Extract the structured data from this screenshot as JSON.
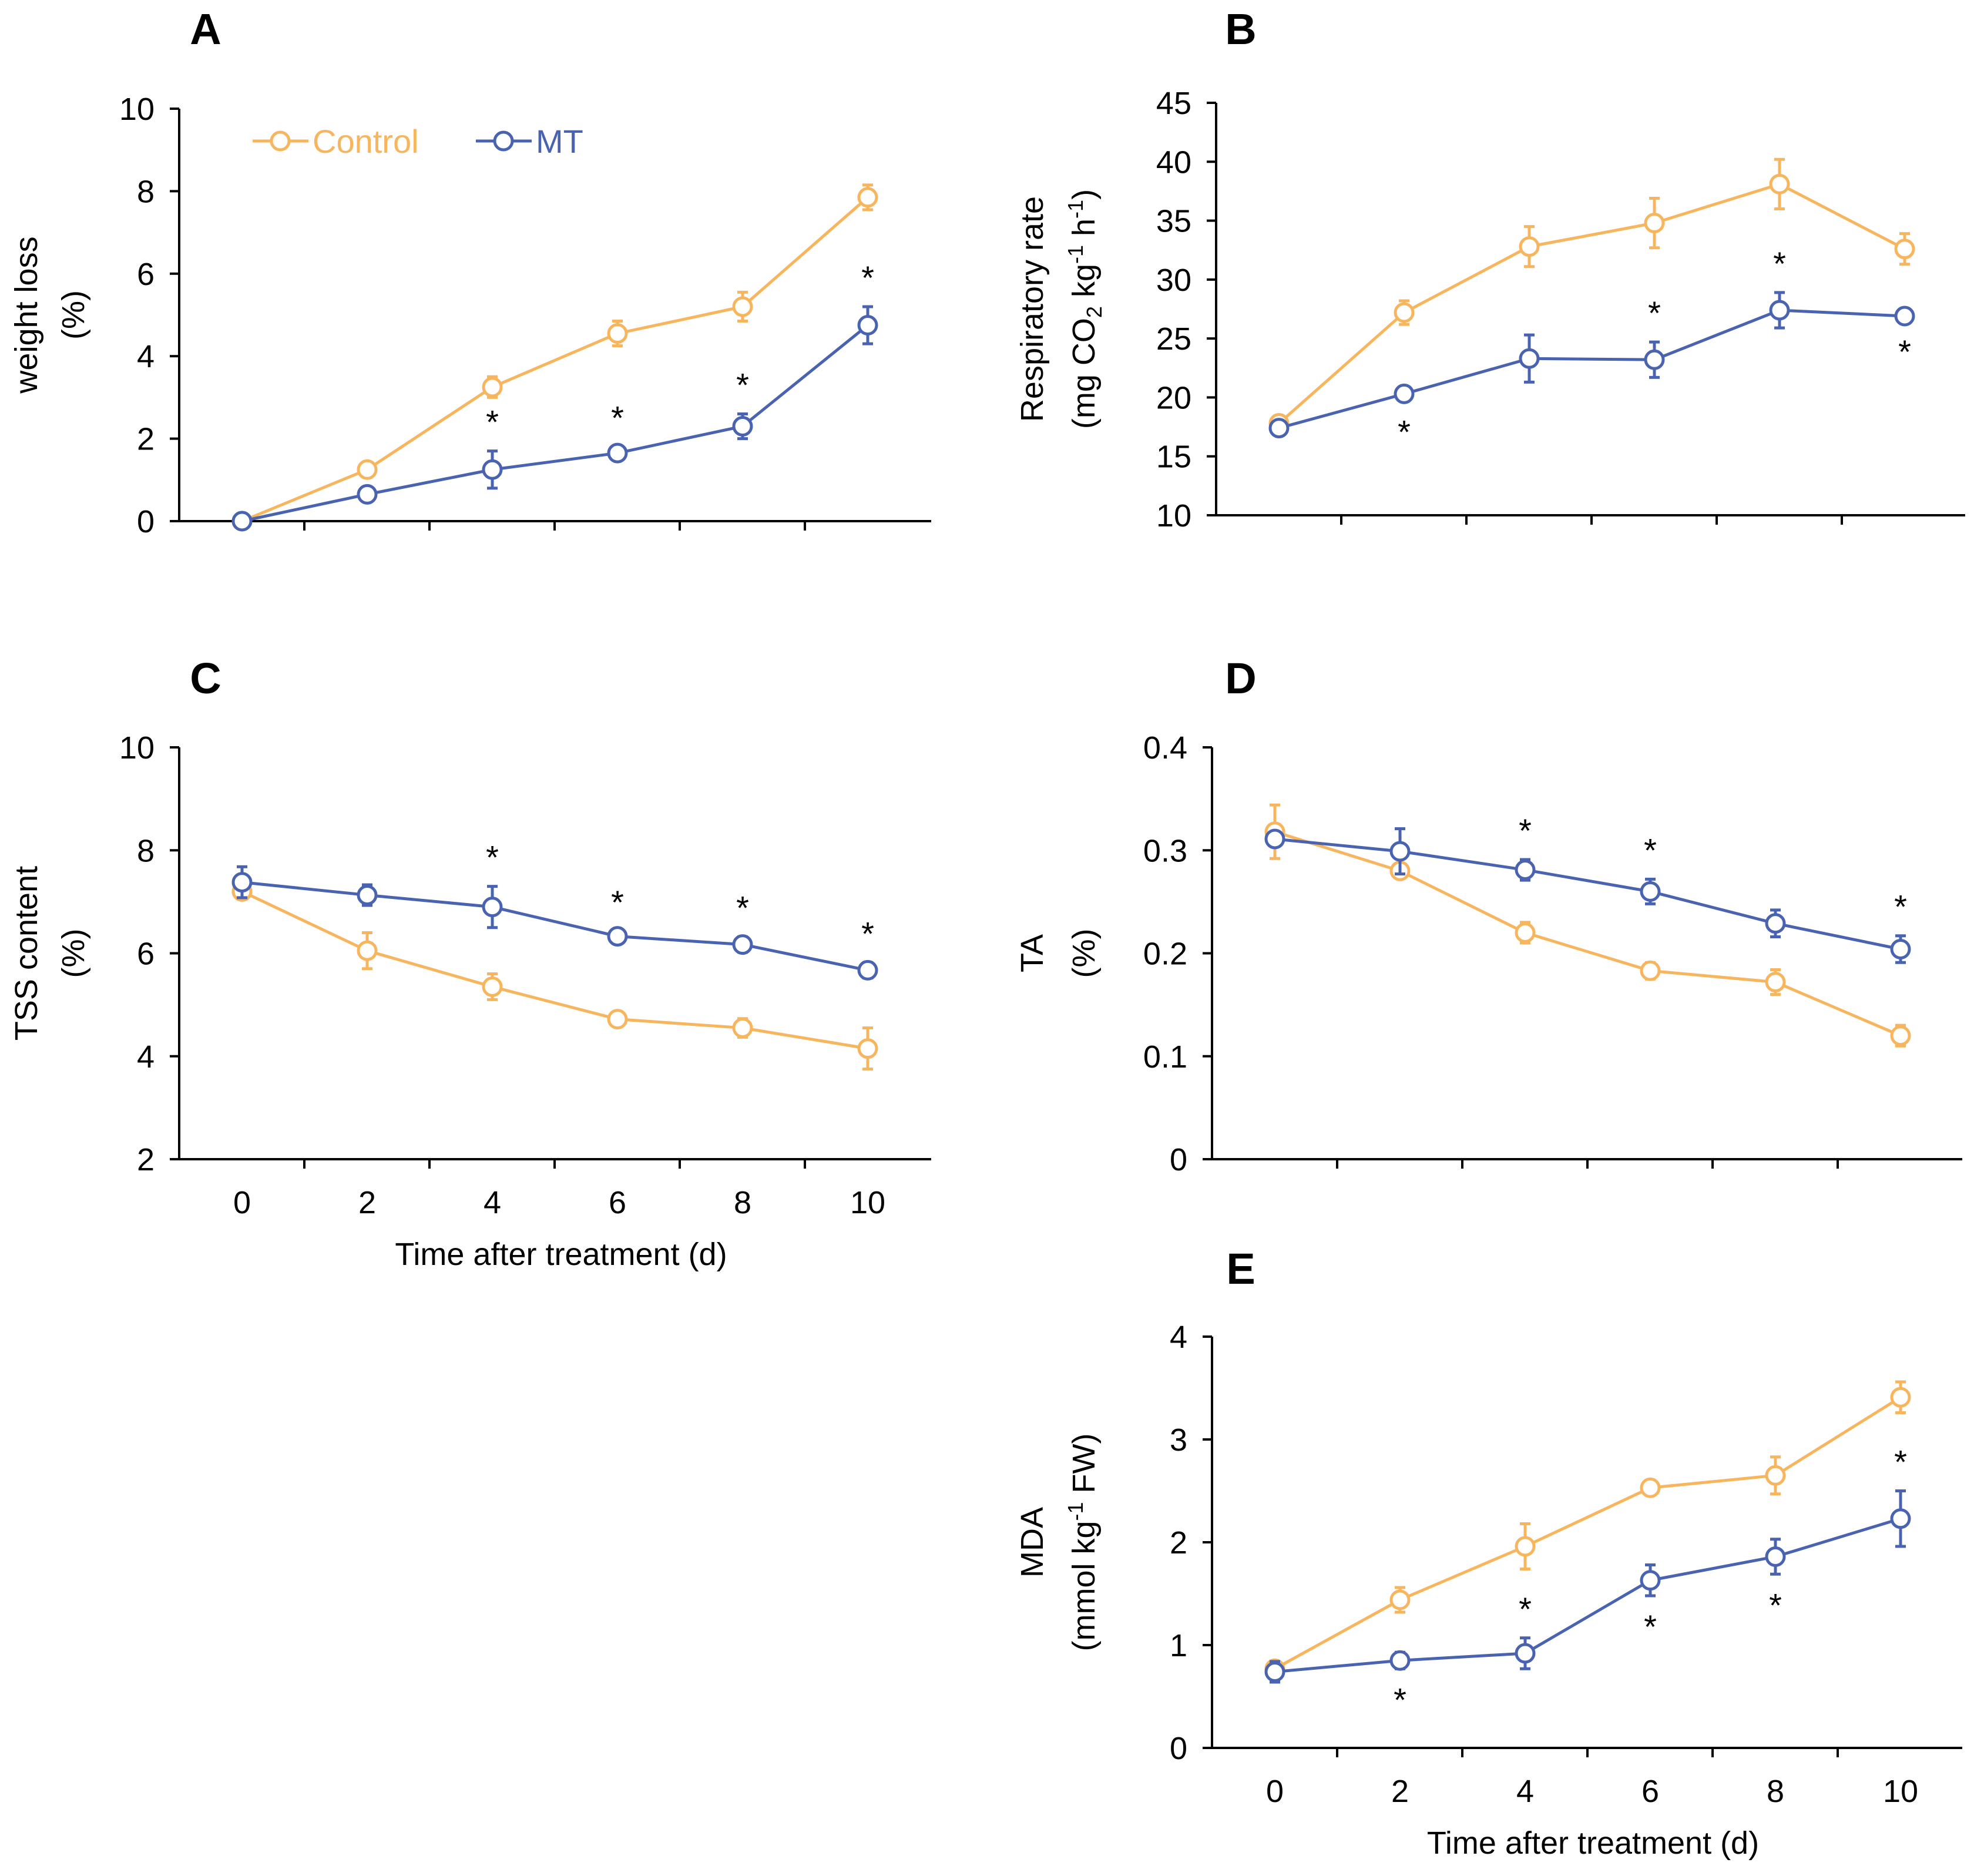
{
  "colors": {
    "control": "#F7B55E",
    "mt": "#4A63B0",
    "axis": "#000000"
  },
  "legend": {
    "placement": "top-left of panel A",
    "control": "Control",
    "mt": "MT"
  },
  "xlabel": "Time after treatment (d)",
  "chart_data": [
    {
      "panel": "A",
      "type": "line",
      "x": [
        0,
        2,
        4,
        6,
        8,
        10
      ],
      "xticks": [
        "",
        "",
        "",
        "",
        "",
        ""
      ],
      "ylim": [
        0,
        10
      ],
      "yticks": [
        "0",
        "2",
        "4",
        "6",
        "8",
        "10"
      ],
      "ylabel_lines": [
        "weight loss",
        "(%)"
      ],
      "xlabel": "",
      "series": [
        {
          "name": "Control",
          "values": [
            0,
            1.25,
            3.25,
            4.55,
            5.2,
            7.85
          ],
          "errors": [
            0.05,
            0.12,
            0.25,
            0.3,
            0.35,
            0.3
          ]
        },
        {
          "name": "MT",
          "values": [
            0,
            0.65,
            1.25,
            1.65,
            2.3,
            4.75
          ],
          "errors": [
            0.05,
            0.1,
            0.45,
            0.15,
            0.3,
            0.45
          ]
        }
      ],
      "significance": [
        "",
        "",
        "*",
        "*",
        "*",
        "*"
      ]
    },
    {
      "panel": "B",
      "type": "line",
      "x": [
        0,
        2,
        4,
        6,
        8,
        10
      ],
      "xticks": [
        "",
        "",
        "",
        "",
        "",
        ""
      ],
      "ylim": [
        10,
        45
      ],
      "yticks": [
        "10",
        "15",
        "20",
        "25",
        "30",
        "35",
        "40",
        "45"
      ],
      "ylabel_lines": [
        "Respiratory rate"
      ],
      "ylabel_unit": {
        "prefix": "(mg CO",
        "sub": "2",
        "mid": " kg",
        "sup1": "-1",
        "mid2": " h",
        "sup2": "-1",
        "suffix": ")"
      },
      "xlabel": "",
      "series": [
        {
          "name": "Control",
          "values": [
            17.8,
            27.2,
            32.8,
            34.8,
            38.1,
            32.6
          ],
          "errors": [
            0.6,
            1.0,
            1.7,
            2.1,
            2.1,
            1.3
          ]
        },
        {
          "name": "MT",
          "values": [
            17.4,
            20.3,
            23.3,
            23.2,
            27.4,
            26.9
          ],
          "errors": [
            0.5,
            0.6,
            2.0,
            1.5,
            1.5,
            0.4
          ]
        }
      ],
      "significance": [
        "",
        "*",
        "",
        "*",
        "*",
        "*"
      ]
    },
    {
      "panel": "C",
      "type": "line",
      "x": [
        0,
        2,
        4,
        6,
        8,
        10
      ],
      "xticks": [
        "0",
        "2",
        "4",
        "6",
        "8",
        "10"
      ],
      "ylim": [
        2,
        10
      ],
      "yticks": [
        "2",
        "4",
        "6",
        "8",
        "10"
      ],
      "ylabel_lines": [
        "TSS content",
        "(%)"
      ],
      "xlabel": "Time after treatment (d)",
      "series": [
        {
          "name": "Control",
          "values": [
            7.2,
            6.05,
            5.35,
            4.72,
            4.55,
            4.15
          ],
          "errors": [
            0.15,
            0.35,
            0.25,
            0.12,
            0.18,
            0.4
          ]
        },
        {
          "name": "MT",
          "values": [
            7.38,
            7.13,
            6.9,
            6.33,
            6.17,
            5.67
          ],
          "errors": [
            0.3,
            0.2,
            0.4,
            0.1,
            0.15,
            0.15
          ]
        }
      ],
      "significance": [
        "",
        "",
        "*",
        "*",
        "*",
        "*"
      ]
    },
    {
      "panel": "D",
      "type": "line",
      "x": [
        0,
        2,
        4,
        6,
        8,
        10
      ],
      "xticks": [
        "",
        "",
        "",
        "",
        "",
        ""
      ],
      "ylim": [
        0,
        0.4
      ],
      "yticks": [
        "0",
        "0.1",
        "0.2",
        "0.3",
        "0.4"
      ],
      "ylabel_lines": [
        "TA",
        "(%)"
      ],
      "xlabel": "",
      "series": [
        {
          "name": "Control",
          "values": [
            0.318,
            0.28,
            0.22,
            0.183,
            0.172,
            0.12
          ],
          "errors": [
            0.026,
            0.005,
            0.01,
            0.008,
            0.012,
            0.01
          ]
        },
        {
          "name": "MT",
          "values": [
            0.311,
            0.299,
            0.281,
            0.26,
            0.229,
            0.204
          ],
          "errors": [
            0.005,
            0.022,
            0.01,
            0.012,
            0.013,
            0.013
          ]
        }
      ],
      "significance": [
        "",
        "",
        "*",
        "*",
        "",
        "*"
      ]
    },
    {
      "panel": "E",
      "type": "line",
      "x": [
        0,
        2,
        4,
        6,
        8,
        10
      ],
      "xticks": [
        "0",
        "2",
        "4",
        "6",
        "8",
        "10"
      ],
      "ylim": [
        0,
        4
      ],
      "yticks": [
        "0",
        "1",
        "2",
        "3",
        "4"
      ],
      "ylabel_lines": [
        "MDA"
      ],
      "ylabel_unit": {
        "prefix": "(mmol kg",
        "sup1": "-1",
        "suffix": " FW)"
      },
      "xlabel": "Time after treatment (d)",
      "series": [
        {
          "name": "Control",
          "values": [
            0.77,
            1.44,
            1.96,
            2.53,
            2.65,
            3.41
          ],
          "errors": [
            0.07,
            0.12,
            0.22,
            0.07,
            0.18,
            0.15
          ]
        },
        {
          "name": "MT",
          "values": [
            0.74,
            0.85,
            0.92,
            1.63,
            1.86,
            2.23
          ],
          "errors": [
            0.1,
            0.08,
            0.15,
            0.15,
            0.17,
            0.27
          ]
        }
      ],
      "significance": [
        "",
        "*",
        "*",
        "*",
        "*",
        "*"
      ]
    }
  ]
}
